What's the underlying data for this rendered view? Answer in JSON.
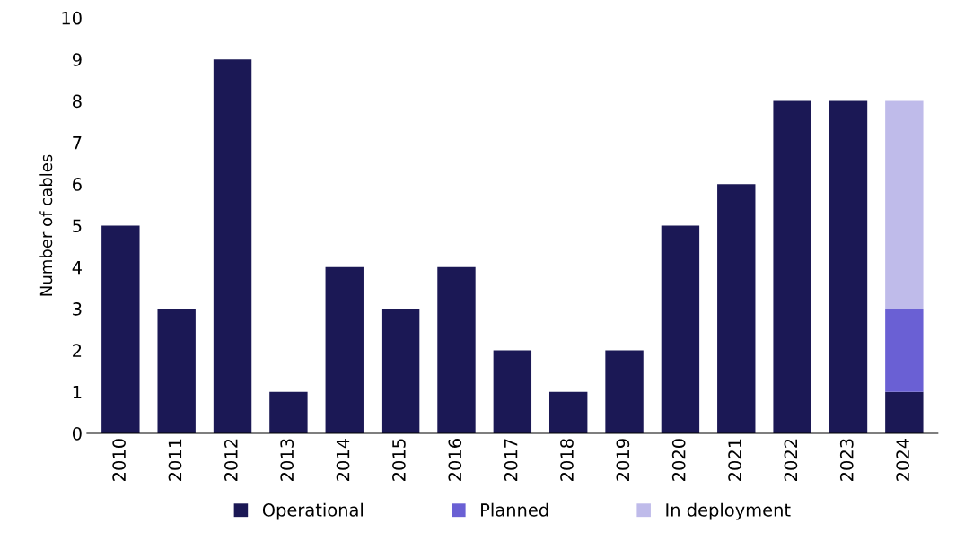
{
  "chart_data": {
    "type": "bar",
    "stacked": true,
    "ylabel": "Number of cables",
    "categories": [
      "2010",
      "2011",
      "2012",
      "2013",
      "2014",
      "2015",
      "2016",
      "2017",
      "2018",
      "2019",
      "2020",
      "2021",
      "2022",
      "2023",
      "2024"
    ],
    "series": [
      {
        "name": "Operational",
        "color": "#1b1855",
        "values": [
          5,
          3,
          9,
          1,
          4,
          3,
          4,
          2,
          1,
          2,
          5,
          6,
          8,
          8,
          1
        ]
      },
      {
        "name": "Planned",
        "color": "#6a60d4",
        "values": [
          null,
          null,
          null,
          null,
          null,
          null,
          null,
          null,
          null,
          null,
          null,
          null,
          null,
          null,
          2
        ]
      },
      {
        "name": "In deployment",
        "color": "#bfbbea",
        "values": [
          null,
          null,
          null,
          null,
          null,
          null,
          null,
          null,
          null,
          null,
          null,
          null,
          null,
          null,
          5
        ]
      }
    ],
    "ylim": [
      0,
      10
    ],
    "yticks": [
      0,
      1,
      2,
      3,
      4,
      5,
      6,
      7,
      8,
      9,
      10
    ],
    "grid": false,
    "legend": "bottom"
  }
}
